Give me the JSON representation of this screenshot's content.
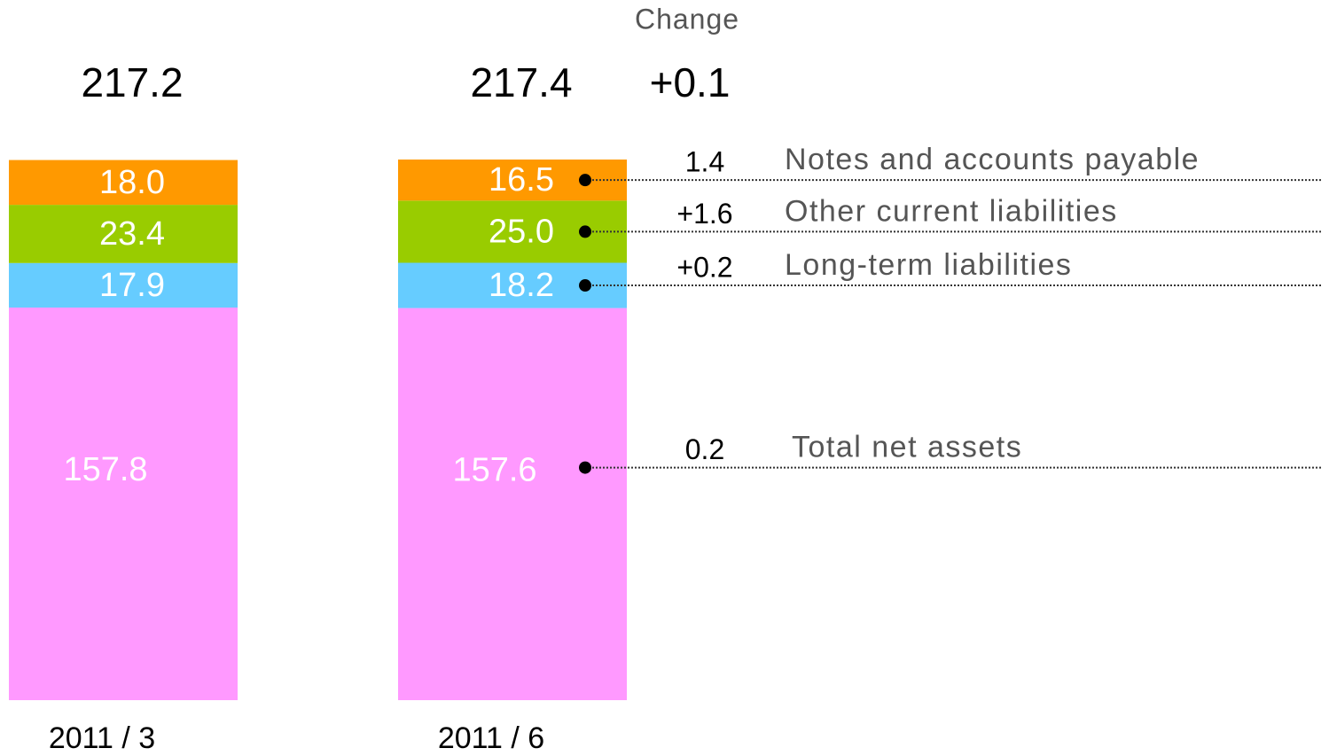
{
  "chart_data": {
    "type": "stacked_bar",
    "change_label": "Change",
    "categories": [
      "2011 / 3",
      "2011 / 6"
    ],
    "totals": [
      217.2,
      217.4
    ],
    "total_change": "+0.1",
    "series": [
      {
        "name": "Total net assets",
        "color": "#ff99ff",
        "values": [
          157.8,
          157.6
        ],
        "value_labels": [
          "157.8",
          "157.6"
        ],
        "change": "0.2"
      },
      {
        "name": "Long-term liabilities",
        "color": "#66ccff",
        "values": [
          17.9,
          18.2
        ],
        "value_labels": [
          "17.9",
          "18.2"
        ],
        "change": "+0.2"
      },
      {
        "name": "Other current liabilities",
        "color": "#99cc00",
        "values": [
          23.4,
          25.0
        ],
        "value_labels": [
          "23.4",
          "25.0"
        ],
        "change": "+1.6"
      },
      {
        "name": "Notes and accounts payable",
        "color": "#ff9900",
        "values": [
          18.0,
          16.5
        ],
        "value_labels": [
          "18.0",
          "16.5"
        ],
        "change": "1.4"
      }
    ]
  }
}
